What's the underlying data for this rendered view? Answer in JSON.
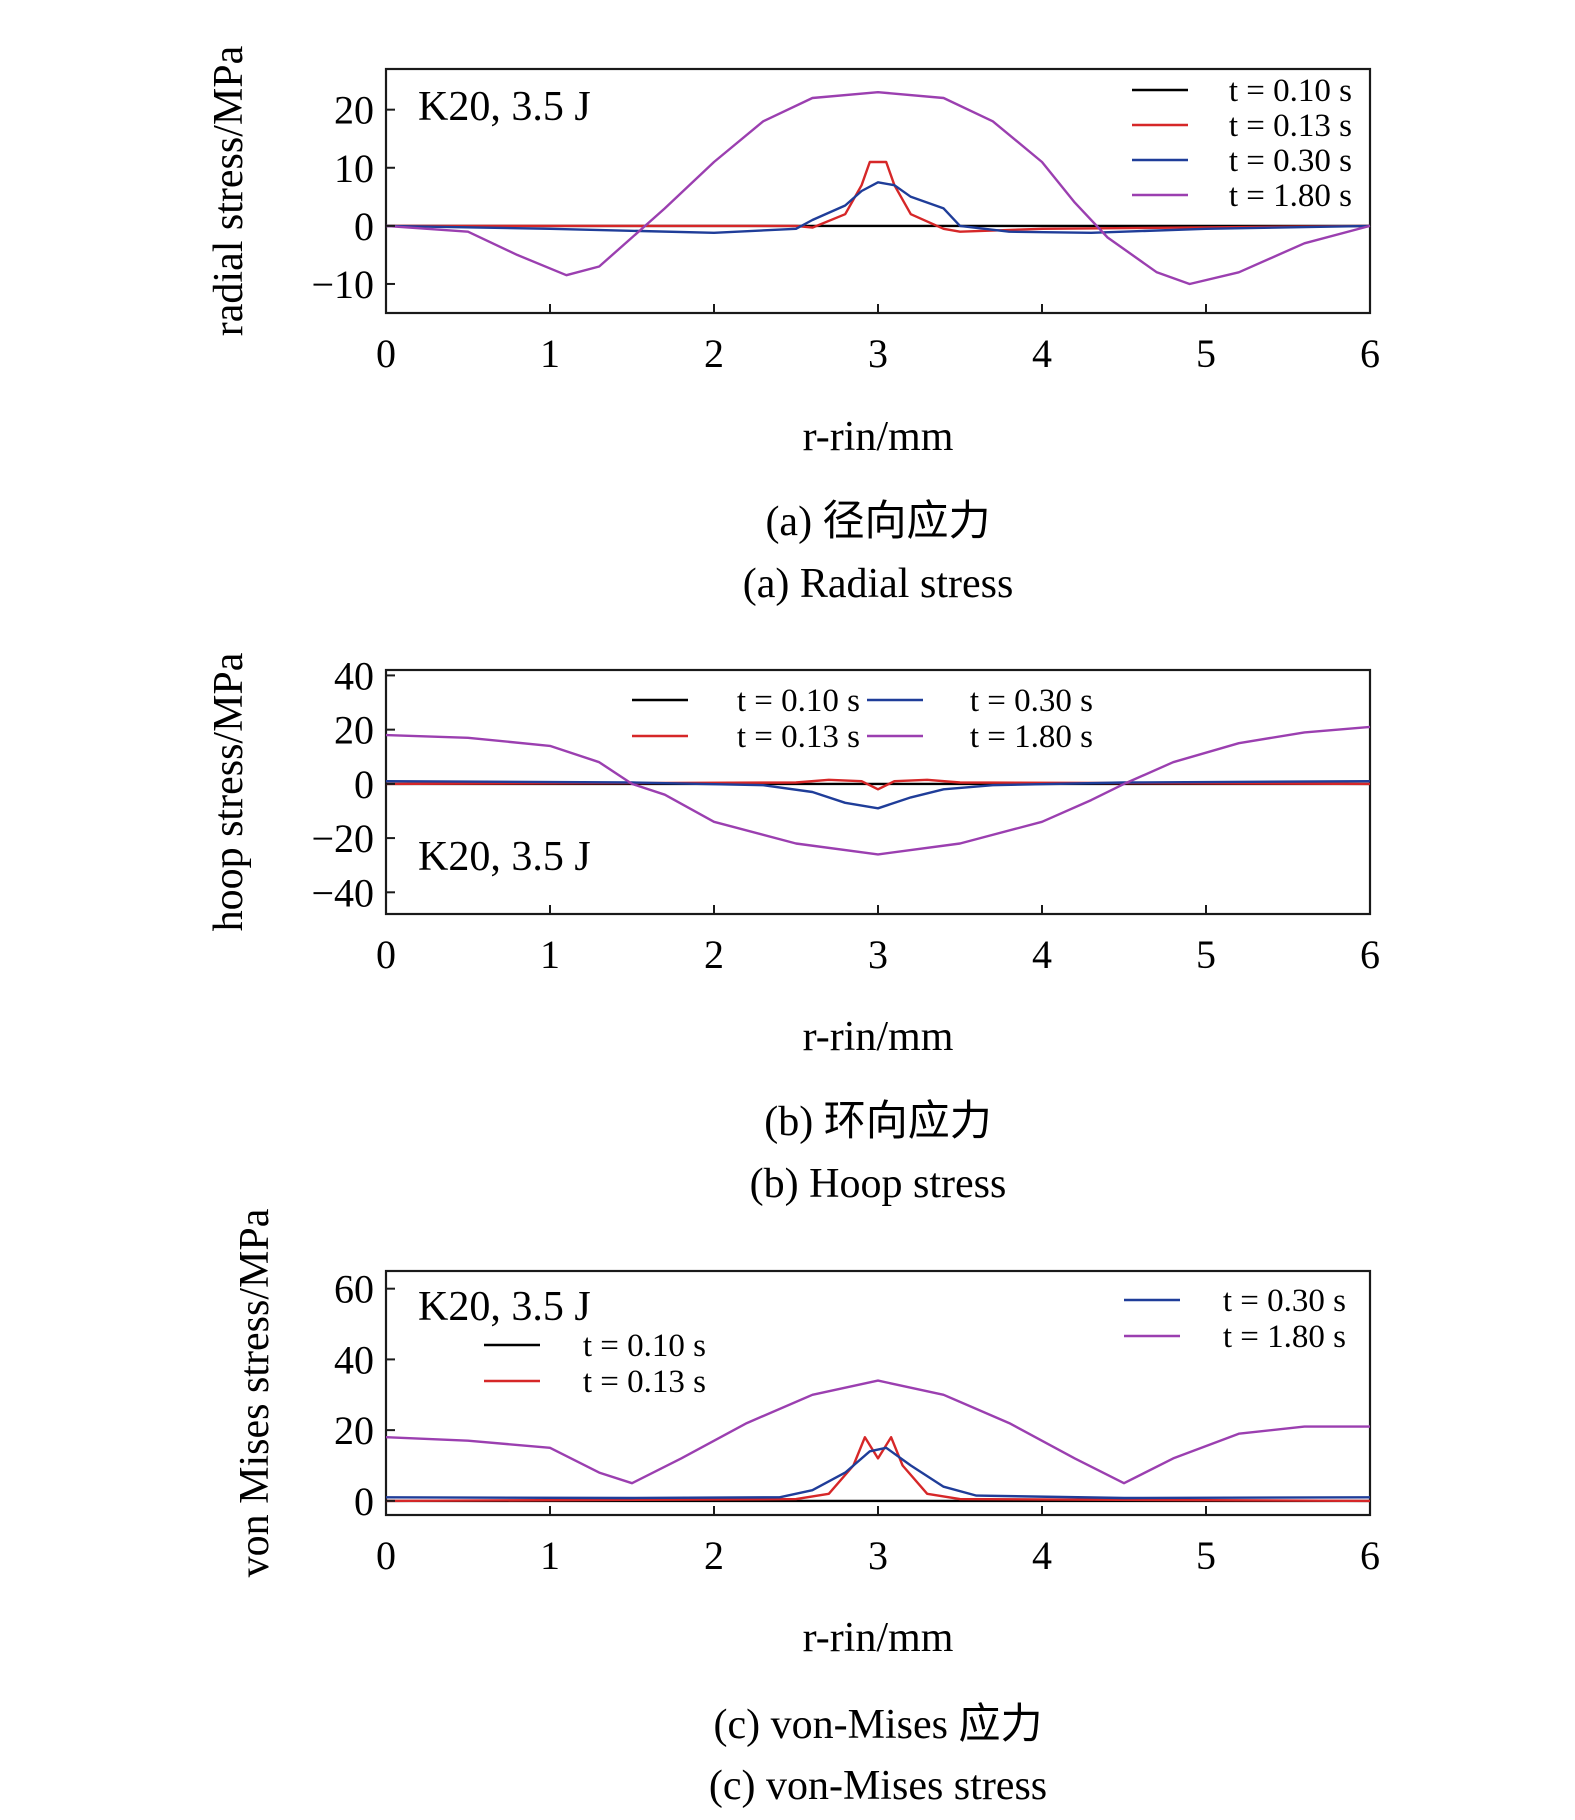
{
  "figure": {
    "panels": [
      {
        "id": "a",
        "caption_cn": "(a) 径向应力",
        "caption_en": "(a) Radial stress",
        "ylabel": "radial stress/MPa"
      },
      {
        "id": "b",
        "caption_cn": "(b) 环向应力",
        "caption_en": "(b) Hoop stress",
        "ylabel": "hoop stress/MPa"
      },
      {
        "id": "c",
        "caption_cn": "(c) von-Mises 应力",
        "caption_en": "(c) von-Mises stress",
        "ylabel": "von Mises stress/MPa"
      }
    ]
  },
  "chart_data": [
    {
      "type": "line",
      "annotation": "K20, 3.5 J",
      "xlabel": "r-rin/mm",
      "ylabel": "radial stress/MPa",
      "xlim": [
        0,
        6
      ],
      "ylim": [
        -15,
        27
      ],
      "xticks": [
        0,
        1,
        2,
        3,
        4,
        5,
        6
      ],
      "yticks": [
        -10,
        0,
        10,
        20
      ],
      "legend_position": "top-right",
      "series": [
        {
          "name": "t = 0.10 s",
          "color": "#000000",
          "x": [
            0,
            6
          ],
          "y": [
            0,
            0
          ]
        },
        {
          "name": "t = 0.13 s",
          "color": "#d62728",
          "x": [
            0,
            2.5,
            2.6,
            2.8,
            2.9,
            2.95,
            3.05,
            3.1,
            3.2,
            3.4,
            3.5,
            4.0,
            6.0
          ],
          "y": [
            0,
            0,
            -0.3,
            2,
            7,
            11,
            11,
            7,
            2,
            -0.5,
            -1,
            -0.5,
            0
          ]
        },
        {
          "name": "t = 0.30 s",
          "color": "#1f3d99",
          "x": [
            0,
            1.0,
            2.0,
            2.5,
            2.6,
            2.8,
            2.9,
            3.0,
            3.1,
            3.2,
            3.4,
            3.5,
            3.8,
            4.3,
            5.0,
            6.0
          ],
          "y": [
            0,
            -0.5,
            -1.2,
            -0.5,
            1,
            3.5,
            6,
            7.5,
            7,
            5,
            3,
            0,
            -1,
            -1.2,
            -0.5,
            0
          ]
        },
        {
          "name": "t = 1.80 s",
          "color": "#9b3fb0",
          "x": [
            0,
            0.5,
            0.8,
            1.1,
            1.3,
            1.5,
            1.7,
            2.0,
            2.3,
            2.6,
            3.0,
            3.4,
            3.7,
            4.0,
            4.2,
            4.4,
            4.7,
            4.9,
            5.2,
            5.6,
            6.0
          ],
          "y": [
            0,
            -1,
            -5,
            -8.5,
            -7,
            -2,
            3,
            11,
            18,
            22,
            23,
            22,
            18,
            11,
            4,
            -2,
            -8,
            -10,
            -8,
            -3,
            0
          ]
        }
      ]
    },
    {
      "type": "line",
      "annotation": "K20, 3.5 J",
      "xlabel": "r-rin/mm",
      "ylabel": "hoop stress/MPa",
      "xlim": [
        0,
        6
      ],
      "ylim": [
        -48,
        42
      ],
      "xticks": [
        0,
        1,
        2,
        3,
        4,
        5,
        6
      ],
      "yticks": [
        -40,
        -20,
        0,
        20,
        40
      ],
      "legend_position": "top-center",
      "series": [
        {
          "name": "t = 0.10 s",
          "color": "#000000",
          "x": [
            0,
            6
          ],
          "y": [
            0,
            0
          ]
        },
        {
          "name": "t = 0.13 s",
          "color": "#d62728",
          "x": [
            0,
            2.5,
            2.7,
            2.9,
            3.0,
            3.1,
            3.3,
            3.5,
            6.0
          ],
          "y": [
            0,
            0.5,
            1.5,
            1,
            -2,
            1,
            1.5,
            0.5,
            0
          ]
        },
        {
          "name": "t = 0.30 s",
          "color": "#1f3d99",
          "x": [
            0,
            1.5,
            2.3,
            2.6,
            2.8,
            3.0,
            3.2,
            3.4,
            3.7,
            4.5,
            6.0
          ],
          "y": [
            1,
            0.5,
            -0.5,
            -3,
            -7,
            -9,
            -5,
            -2,
            -0.5,
            0.5,
            1
          ]
        },
        {
          "name": "t = 1.80 s",
          "color": "#9b3fb0",
          "x": [
            0,
            0.5,
            1.0,
            1.3,
            1.5,
            1.7,
            2.0,
            2.5,
            3.0,
            3.5,
            4.0,
            4.3,
            4.5,
            4.8,
            5.2,
            5.6,
            6.0
          ],
          "y": [
            18,
            17,
            14,
            8,
            0,
            -4,
            -14,
            -22,
            -26,
            -22,
            -14,
            -6,
            0,
            8,
            15,
            19,
            21
          ]
        }
      ]
    },
    {
      "type": "line",
      "annotation": "K20, 3.5 J",
      "xlabel": "r-rin/mm",
      "ylabel": "von Mises stress/MPa",
      "xlim": [
        0,
        6
      ],
      "ylim": [
        -4,
        65
      ],
      "xticks": [
        0,
        1,
        2,
        3,
        4,
        5,
        6
      ],
      "yticks": [
        0,
        20,
        40,
        60
      ],
      "legend_position": "split: left-center and top-right",
      "series": [
        {
          "name": "t = 0.10 s",
          "color": "#000000",
          "x": [
            0,
            6
          ],
          "y": [
            0,
            0
          ]
        },
        {
          "name": "t = 0.13 s",
          "color": "#d62728",
          "x": [
            0,
            2.5,
            2.7,
            2.85,
            2.92,
            3.0,
            3.08,
            3.15,
            3.3,
            3.5,
            6.0
          ],
          "y": [
            0,
            0.5,
            2,
            10,
            18,
            12,
            18,
            10,
            2,
            0.5,
            0
          ]
        },
        {
          "name": "t = 0.30 s",
          "color": "#1f3d99",
          "x": [
            0,
            1.5,
            2.4,
            2.6,
            2.8,
            2.95,
            3.05,
            3.2,
            3.4,
            3.6,
            4.5,
            6.0
          ],
          "y": [
            1,
            0.8,
            1,
            3,
            8,
            14,
            15,
            10,
            4,
            1.5,
            0.8,
            1
          ]
        },
        {
          "name": "t = 1.80 s",
          "color": "#9b3fb0",
          "x": [
            0,
            0.5,
            1.0,
            1.3,
            1.5,
            1.8,
            2.2,
            2.6,
            3.0,
            3.4,
            3.8,
            4.2,
            4.5,
            4.8,
            5.2,
            5.6,
            6.0
          ],
          "y": [
            18,
            17,
            15,
            8,
            5,
            12,
            22,
            30,
            34,
            30,
            22,
            12,
            5,
            12,
            19,
            21,
            21
          ]
        }
      ]
    }
  ]
}
